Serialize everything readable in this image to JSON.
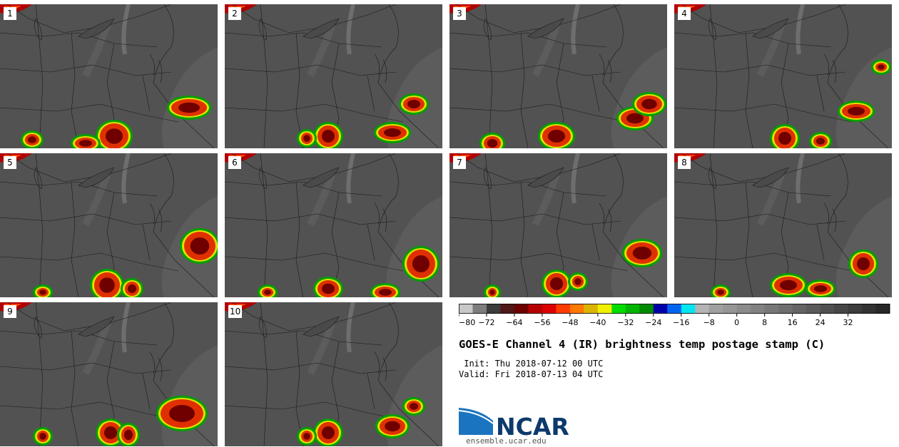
{
  "panels": [
    {
      "label": "1"
    },
    {
      "label": "2"
    },
    {
      "label": "3"
    },
    {
      "label": "4"
    },
    {
      "label": "5"
    },
    {
      "label": "6"
    },
    {
      "label": "7"
    },
    {
      "label": "8"
    },
    {
      "label": "9"
    },
    {
      "label": "10"
    }
  ],
  "colorbar": {
    "colors": [
      "#c8c8c8",
      "#7d7d7d",
      "#3c3c3c",
      "#501818",
      "#6e0000",
      "#b40000",
      "#dc0000",
      "#ff3c00",
      "#ff7800",
      "#dcb400",
      "#f0f000",
      "#00dc00",
      "#00b400",
      "#008c00",
      "#0000aa",
      "#0064f0",
      "#00e6f0",
      "#b4b4b4",
      "#a0a0a0",
      "#969696",
      "#8c8c8c",
      "#828282",
      "#787878",
      "#6e6e6e",
      "#646464",
      "#5a5a5a",
      "#505050",
      "#464646",
      "#3c3c3c",
      "#323232",
      "#282828"
    ],
    "tick_labels": [
      "−80",
      "−72",
      "−64",
      "−56",
      "−48",
      "−40",
      "−32",
      "−24",
      "−16",
      "−8",
      "0",
      "8",
      "16",
      "24",
      "32"
    ]
  },
  "title": "GOES-E Channel 4 (IR) brightness temp postage stamp (C)",
  "init_line": " Init: Thu 2018-07-12 00 UTC",
  "valid_line": "Valid: Fri 2018-07-13 04 UTC",
  "logo": {
    "text": "NCAR",
    "url": "ensemble.ucar.edu",
    "color": "#0d3a6b",
    "accent": "#1b74bf"
  }
}
